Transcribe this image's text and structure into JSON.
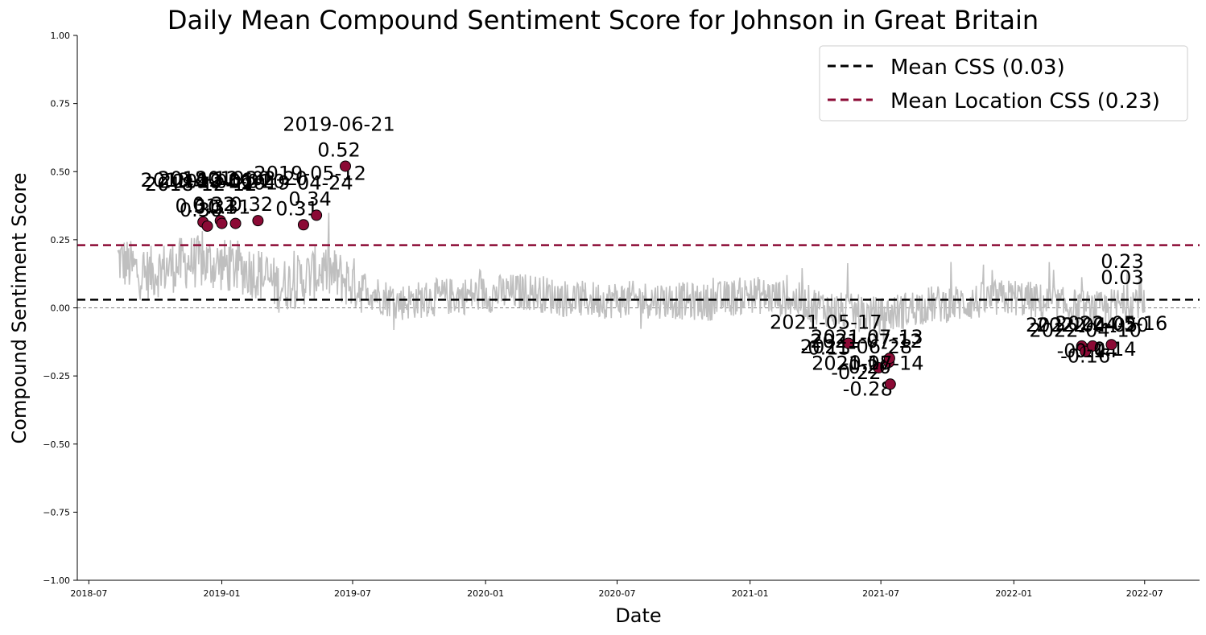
{
  "chart_data": {
    "type": "line",
    "title": "Daily Mean Compound Sentiment Score for Johnson in Great Britain",
    "xlabel": "Date",
    "ylabel": "Compound Sentiment Score",
    "xlim": [
      "2018-06-15",
      "2022-09-15"
    ],
    "ylim": [
      -1.0,
      1.0
    ],
    "x_ticks": [
      "2018-07",
      "2019-01",
      "2019-07",
      "2020-01",
      "2020-07",
      "2021-01",
      "2021-07",
      "2022-01",
      "2022-07"
    ],
    "y_ticks": [
      "−1.00",
      "−0.75",
      "−0.50",
      "−0.25",
      "0.00",
      "0.25",
      "0.50",
      "0.75",
      "1.00"
    ],
    "grid": false,
    "legend_position": "top-right",
    "colors": {
      "series": "#bfbfbf",
      "mean_line": "#000000",
      "location_line": "#8b0a35",
      "markers": "#8b0a35",
      "zero_line": "#808080"
    },
    "series": {
      "start_date": "2018-08-10",
      "end_date": "2022-07-01",
      "anchors": [
        {
          "date": "2018-08-10",
          "value": 0.18
        },
        {
          "date": "2018-09-15",
          "value": 0.12
        },
        {
          "date": "2018-10-20",
          "value": 0.15
        },
        {
          "date": "2018-11-20",
          "value": 0.17
        },
        {
          "date": "2018-12-20",
          "value": 0.16
        },
        {
          "date": "2019-01-20",
          "value": 0.15
        },
        {
          "date": "2019-02-20",
          "value": 0.13
        },
        {
          "date": "2019-03-20",
          "value": 0.08
        },
        {
          "date": "2019-04-20",
          "value": 0.1
        },
        {
          "date": "2019-05-20",
          "value": 0.14
        },
        {
          "date": "2019-07-10",
          "value": 0.08
        },
        {
          "date": "2019-09-01",
          "value": 0.02
        },
        {
          "date": "2019-11-01",
          "value": 0.04
        },
        {
          "date": "2020-01-01",
          "value": 0.05
        },
        {
          "date": "2020-03-01",
          "value": 0.06
        },
        {
          "date": "2020-05-01",
          "value": 0.03
        },
        {
          "date": "2020-07-01",
          "value": 0.03
        },
        {
          "date": "2020-09-01",
          "value": 0.03
        },
        {
          "date": "2020-11-01",
          "value": 0.02
        },
        {
          "date": "2021-01-01",
          "value": 0.05
        },
        {
          "date": "2021-03-01",
          "value": 0.03
        },
        {
          "date": "2021-05-01",
          "value": -0.01
        },
        {
          "date": "2021-07-01",
          "value": -0.03
        },
        {
          "date": "2021-09-01",
          "value": 0.01
        },
        {
          "date": "2021-11-01",
          "value": 0.02
        },
        {
          "date": "2022-01-01",
          "value": 0.04
        },
        {
          "date": "2022-03-01",
          "value": 0.01
        },
        {
          "date": "2022-05-01",
          "value": -0.01
        },
        {
          "date": "2022-07-01",
          "value": 0.04
        }
      ]
    },
    "reference_lines": [
      {
        "label": "Mean CSS (0.03)",
        "value": 0.03,
        "value_label": "0.03",
        "color": "#000000"
      },
      {
        "label": "Mean Location CSS (0.23)",
        "value": 0.23,
        "value_label": "0.23",
        "color": "#8b0a35"
      }
    ],
    "highlighted_points": [
      {
        "date": "2018-12-06",
        "value": 0.315,
        "value_label": "0.31",
        "date_label": "2018-12-06"
      },
      {
        "date": "2018-12-12",
        "value": 0.3,
        "value_label": "0.30",
        "date_label": "2018-12-12"
      },
      {
        "date": "2018-12-30",
        "value": 0.32,
        "value_label": "0.32",
        "date_label": "2018-12-30"
      },
      {
        "date": "2019-01-01",
        "value": 0.31,
        "value_label": "0.31",
        "date_label": "2019-01-01"
      },
      {
        "date": "2019-01-20",
        "value": 0.31,
        "value_label": "0.31",
        "date_label": "2019-01-20"
      },
      {
        "date": "2019-02-20",
        "value": 0.32,
        "value_label": "0.32",
        "date_label": "2019-02-20"
      },
      {
        "date": "2019-04-24",
        "value": 0.305,
        "value_label": "0.31",
        "date_label": "2019-04-24"
      },
      {
        "date": "2019-05-12",
        "value": 0.34,
        "value_label": "0.34",
        "date_label": "2019-05-12"
      },
      {
        "date": "2019-06-21",
        "value": 0.52,
        "value_label": "0.52",
        "date_label": "2019-06-21"
      },
      {
        "date": "2021-05-17",
        "value": -0.13,
        "value_label": "-0.13",
        "date_label": "2021-05-17"
      },
      {
        "date": "2021-06-28",
        "value": -0.22,
        "value_label": "-0.22",
        "date_label": "2021-06-28"
      },
      {
        "date": "2021-07-12",
        "value": -0.2,
        "value_label": "-0.20",
        "date_label": "2021-07-12"
      },
      {
        "date": "2021-07-13",
        "value": -0.185,
        "value_label": "-0.18",
        "date_label": "2021-07-13"
      },
      {
        "date": "2021-07-14",
        "value": -0.28,
        "value_label": "-0.28",
        "date_label": "2021-07-14"
      },
      {
        "date": "2022-04-05",
        "value": -0.14,
        "value_label": "-0.14",
        "date_label": "2022-04-05"
      },
      {
        "date": "2022-04-10",
        "value": -0.16,
        "value_label": "-0.16",
        "date_label": "2022-04-10"
      },
      {
        "date": "2022-04-20",
        "value": -0.14,
        "value_label": "-0.14",
        "date_label": "2022-04-20"
      },
      {
        "date": "2022-05-16",
        "value": -0.135,
        "value_label": "-0.14",
        "date_label": "2022-05-16"
      }
    ]
  }
}
